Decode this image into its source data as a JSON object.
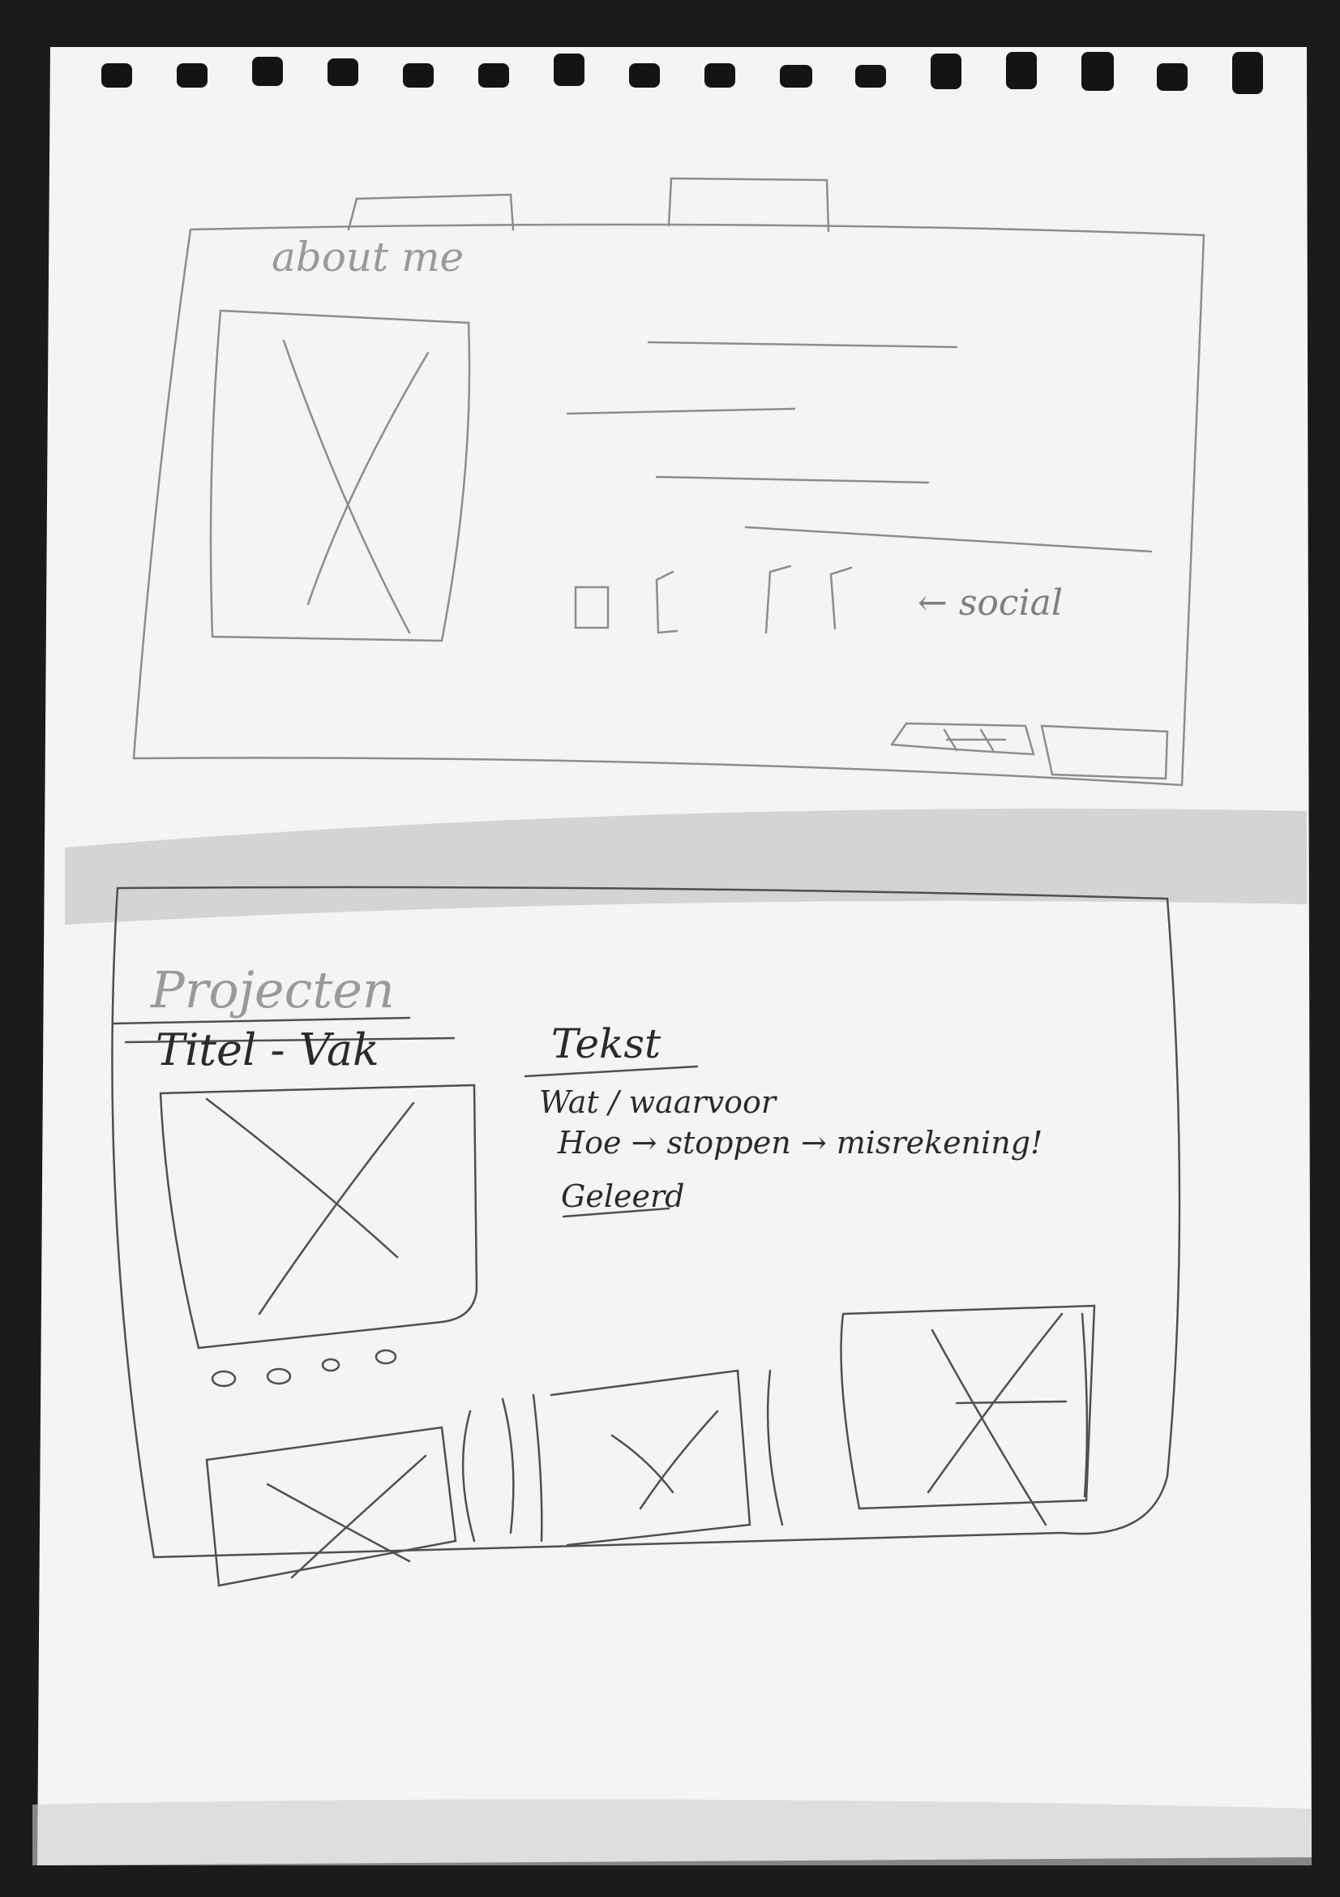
{
  "sketch": {
    "about_section": {
      "heading": "about me",
      "social_note": "← social"
    },
    "projects_section": {
      "heading": "Projecten",
      "title_line": "Titel - Vak",
      "subheading": "Tekst",
      "text_line_1": "Wat / waarvoor",
      "text_line_2": "Hoe → stoppen → misrekening!",
      "text_line_3": "Geleerd",
      "carousel_dot_count": 4
    }
  }
}
